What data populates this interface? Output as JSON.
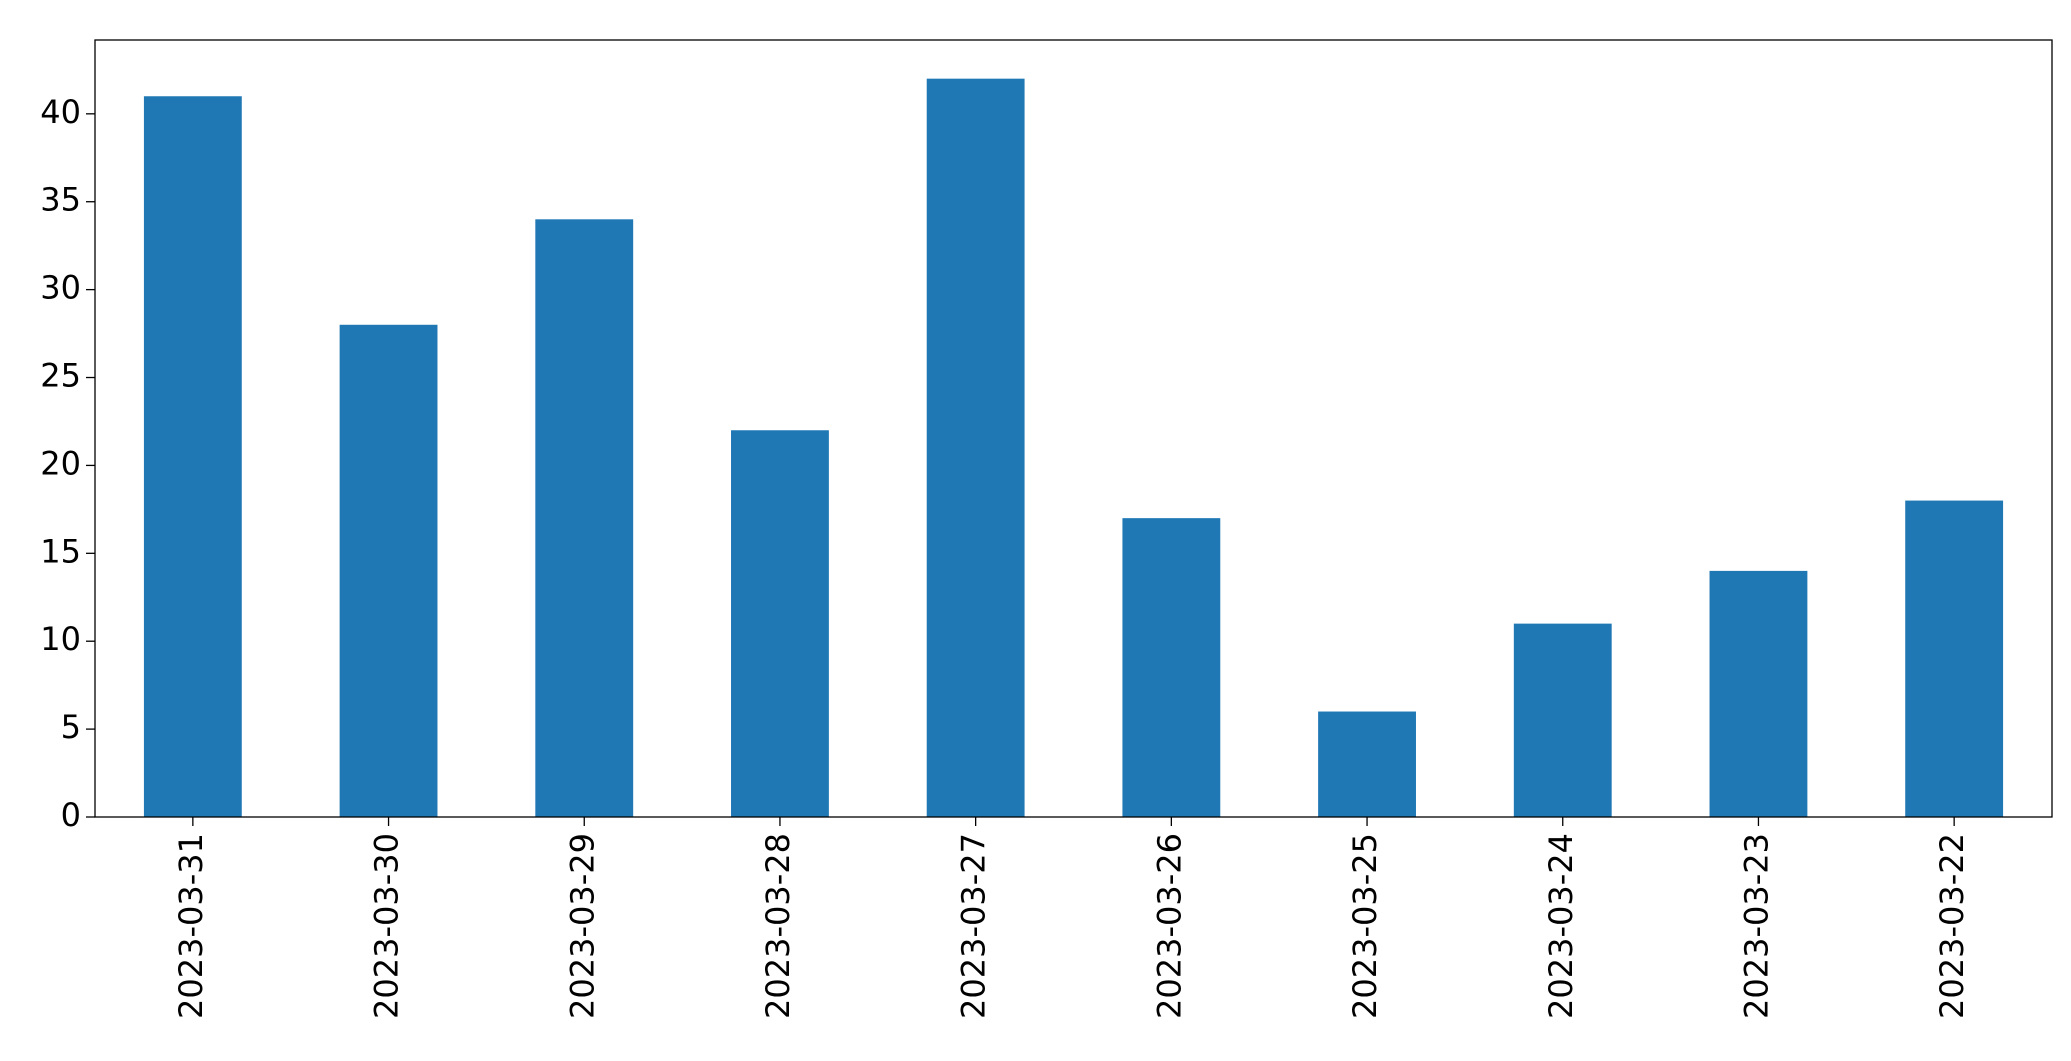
{
  "chart_data": {
    "type": "bar",
    "categories": [
      "2023-03-31",
      "2023-03-30",
      "2023-03-29",
      "2023-03-28",
      "2023-03-27",
      "2023-03-26",
      "2023-03-25",
      "2023-03-24",
      "2023-03-23",
      "2023-03-22"
    ],
    "values": [
      41,
      28,
      34,
      22,
      42,
      17,
      6,
      11,
      14,
      18
    ],
    "color": "#1f77b4",
    "ylim": [
      0,
      44.2
    ],
    "yticks": [
      0,
      5,
      10,
      15,
      20,
      25,
      30,
      35,
      40
    ],
    "grid": false
  }
}
